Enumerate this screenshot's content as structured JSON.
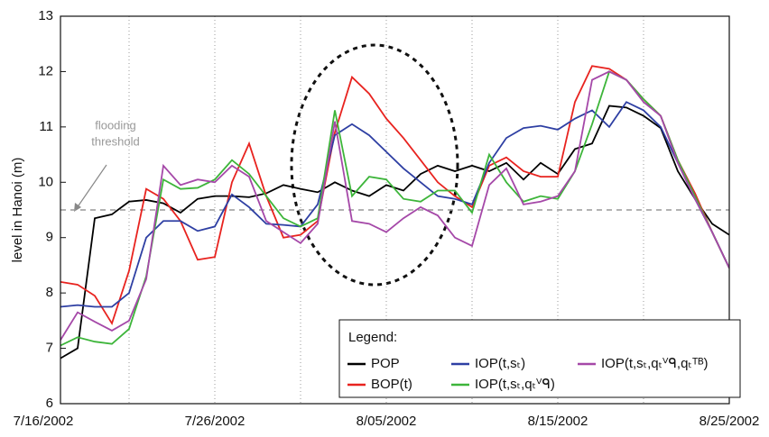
{
  "chart_data": {
    "type": "line",
    "y_label": "level in Hanoi (m)",
    "x": [
      1,
      2,
      3,
      4,
      5,
      6,
      7,
      8,
      9,
      10,
      11,
      12,
      13,
      14,
      15,
      16,
      17,
      18,
      19,
      20,
      21,
      22,
      23,
      24,
      25,
      26,
      27,
      28,
      29,
      30,
      31,
      32,
      33,
      34,
      35,
      36,
      37,
      38,
      39,
      40
    ],
    "xlim": [
      1,
      40
    ],
    "xticks": [
      {
        "value": 0,
        "label": "7/16/2002"
      },
      {
        "value": 10,
        "label": "7/26/2002"
      },
      {
        "value": 20,
        "label": "8/05/2002"
      },
      {
        "value": 30,
        "label": "8/15/2002"
      },
      {
        "value": 40,
        "label": "8/25/2002"
      }
    ],
    "xminorticks": [
      5,
      15,
      25,
      35
    ],
    "ylim": [
      6,
      13
    ],
    "yticks": [
      6,
      7,
      8,
      9,
      10,
      11,
      12,
      13
    ],
    "grid": true,
    "threshold": 9.5,
    "threshold_annotation": [
      "flooding",
      "threshold"
    ],
    "legend_title": "Legend:",
    "legend": "lower right",
    "series": [
      {
        "name": "POP",
        "color": "#000000",
        "values": [
          6.82,
          7.0,
          9.35,
          9.42,
          9.65,
          9.68,
          9.62,
          9.45,
          9.7,
          9.75,
          9.75,
          9.73,
          9.8,
          9.95,
          9.88,
          9.82,
          10.0,
          9.85,
          9.75,
          9.95,
          9.85,
          10.15,
          10.3,
          10.2,
          10.3,
          10.2,
          10.35,
          10.05,
          10.35,
          10.15,
          10.6,
          10.7,
          11.38,
          11.35,
          11.2,
          10.98,
          10.2,
          9.7,
          9.25,
          9.05
        ]
      },
      {
        "name": "BOP(t)",
        "color": "#e8231f",
        "values": [
          8.2,
          8.15,
          7.95,
          7.45,
          8.4,
          9.88,
          9.7,
          9.3,
          8.6,
          8.65,
          10.0,
          10.7,
          9.75,
          9.0,
          9.05,
          9.3,
          10.9,
          11.9,
          11.6,
          11.15,
          10.8,
          10.4,
          10.0,
          9.75,
          9.55,
          10.3,
          10.45,
          10.2,
          10.1,
          10.1,
          11.45,
          12.1,
          12.05,
          11.85,
          11.5,
          11.2,
          10.4,
          9.8,
          9.1,
          8.45
        ]
      },
      {
        "name": "IOP(t,sₜ)",
        "color": "#2e3fa3",
        "values": [
          7.75,
          7.78,
          7.75,
          7.75,
          8.0,
          9.0,
          9.3,
          9.3,
          9.12,
          9.2,
          9.78,
          9.55,
          9.25,
          9.23,
          9.2,
          9.6,
          10.85,
          11.05,
          10.85,
          10.55,
          10.25,
          10.0,
          9.75,
          9.7,
          9.6,
          10.35,
          10.8,
          10.98,
          11.02,
          10.95,
          11.15,
          11.3,
          11.0,
          11.45,
          11.3,
          11.0,
          10.35,
          9.7,
          9.1,
          8.45
        ]
      },
      {
        "name": "IOP(t,sₜ,qₜⱽᑫ)",
        "color": "#3db53a",
        "values": [
          7.05,
          7.2,
          7.12,
          7.08,
          7.35,
          8.3,
          10.05,
          9.88,
          9.9,
          10.05,
          10.4,
          10.15,
          9.75,
          9.35,
          9.2,
          9.35,
          11.3,
          9.75,
          10.1,
          10.05,
          9.7,
          9.65,
          9.85,
          9.85,
          9.45,
          10.5,
          10.0,
          9.65,
          9.75,
          9.7,
          10.2,
          11.05,
          12.0,
          11.85,
          11.5,
          11.2,
          10.4,
          9.75,
          9.1,
          8.45
        ]
      },
      {
        "name": "IOP(t,sₜ,qₜⱽᑫ,qₜᵀᴮ)",
        "color": "#a548a8",
        "values": [
          7.15,
          7.65,
          7.48,
          7.32,
          7.5,
          8.25,
          10.3,
          9.95,
          10.05,
          10.0,
          10.3,
          10.1,
          9.3,
          9.1,
          8.9,
          9.25,
          11.1,
          9.3,
          9.25,
          9.1,
          9.35,
          9.55,
          9.4,
          9.0,
          8.85,
          9.95,
          10.25,
          9.6,
          9.65,
          9.75,
          10.2,
          11.85,
          12.0,
          11.85,
          11.45,
          11.2,
          10.35,
          9.7,
          9.1,
          8.45
        ]
      }
    ]
  }
}
